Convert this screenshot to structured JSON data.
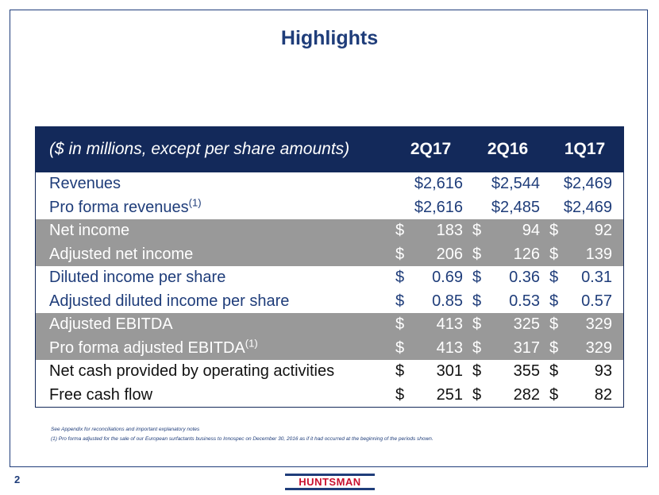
{
  "title": "Highlights",
  "table": {
    "header_label": "($ in millions, except per share amounts)",
    "periods": [
      "2Q17",
      "2Q16",
      "1Q17"
    ],
    "rows": [
      {
        "label": "Revenues",
        "sup": "",
        "vals": [
          {
            "d": "",
            "v": "$2,616"
          },
          {
            "d": "",
            "v": "$2,544"
          },
          {
            "d": "",
            "v": "$2,469"
          }
        ]
      },
      {
        "label": "Pro forma revenues",
        "sup": "(1)",
        "vals": [
          {
            "d": "",
            "v": "$2,616"
          },
          {
            "d": "",
            "v": "$2,485"
          },
          {
            "d": "",
            "v": "$2,469"
          }
        ]
      },
      {
        "label": "Net income",
        "sup": "",
        "vals": [
          {
            "d": "$",
            "v": "183"
          },
          {
            "d": "$",
            "v": "94"
          },
          {
            "d": "$",
            "v": "92"
          }
        ]
      },
      {
        "label": "Adjusted net income",
        "sup": "",
        "vals": [
          {
            "d": "$",
            "v": "206"
          },
          {
            "d": "$",
            "v": "126"
          },
          {
            "d": "$",
            "v": "139"
          }
        ]
      },
      {
        "label": "Diluted income per share",
        "sup": "",
        "vals": [
          {
            "d": "$",
            "v": "0.69"
          },
          {
            "d": "$",
            "v": "0.36"
          },
          {
            "d": "$",
            "v": "0.31"
          }
        ]
      },
      {
        "label": "Adjusted diluted income per share",
        "sup": "",
        "vals": [
          {
            "d": "$",
            "v": "0.85"
          },
          {
            "d": "$",
            "v": "0.53"
          },
          {
            "d": "$",
            "v": "0.57"
          }
        ]
      },
      {
        "label": "Adjusted EBITDA",
        "sup": "",
        "vals": [
          {
            "d": "$",
            "v": "413"
          },
          {
            "d": "$",
            "v": "325"
          },
          {
            "d": "$",
            "v": "329"
          }
        ]
      },
      {
        "label": "Pro forma adjusted EBITDA",
        "sup": "(1)",
        "vals": [
          {
            "d": "$",
            "v": "413"
          },
          {
            "d": "$",
            "v": "317"
          },
          {
            "d": "$",
            "v": "329"
          }
        ]
      },
      {
        "label": "Net cash provided by operating activities",
        "sup": "",
        "vals": [
          {
            "d": "$",
            "v": "301"
          },
          {
            "d": "$",
            "v": "355"
          },
          {
            "d": "$",
            "v": "93"
          }
        ]
      },
      {
        "label": "Free cash flow",
        "sup": "",
        "vals": [
          {
            "d": "$",
            "v": "251"
          },
          {
            "d": "$",
            "v": "282"
          },
          {
            "d": "$",
            "v": "82"
          }
        ]
      }
    ]
  },
  "notes": [
    "See Appendix for reconciliations and important explanatory notes",
    "(1) Pro forma adjusted for the sale of our European surfactants business to Innospec on December 30, 2016 as if it had occurred at the beginning of the periods shown."
  ],
  "page_number": "2",
  "logo_text": "HUNTSMAN",
  "colors": {
    "navy": "#13295a",
    "grey_band": "#999999",
    "logo_red": "#c8102e"
  }
}
